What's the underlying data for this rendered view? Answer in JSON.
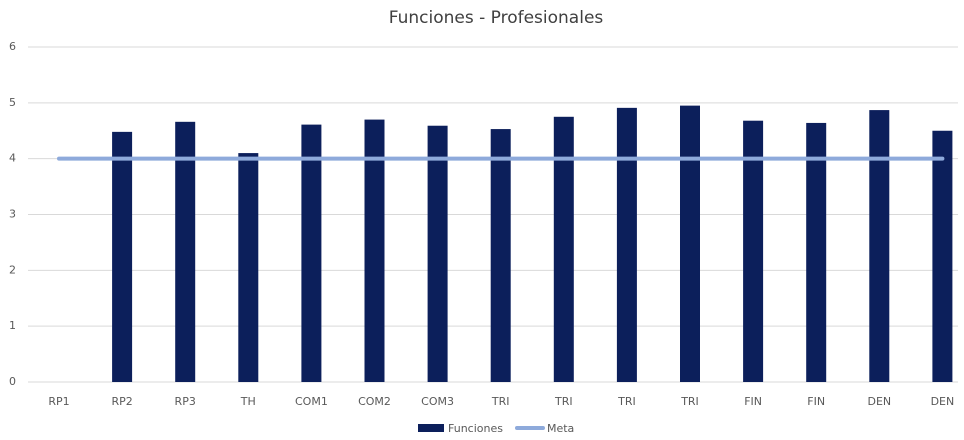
{
  "chart_data": {
    "type": "bar",
    "title": "Funciones - Profesionales",
    "categories": [
      "RP1",
      "RP2",
      "RP3",
      "TH",
      "COM1",
      "COM2",
      "COM3",
      "TRI",
      "TRI",
      "TRI",
      "TRI",
      "FIN",
      "FIN",
      "DEN",
      "DEN"
    ],
    "series": [
      {
        "name": "Funciones",
        "type": "bar",
        "color": "#0c1f5b",
        "values": [
          null,
          4.48,
          4.66,
          4.1,
          4.61,
          4.7,
          4.59,
          4.53,
          4.75,
          4.91,
          4.95,
          4.68,
          4.64,
          4.87,
          4.5
        ]
      },
      {
        "name": "Meta",
        "type": "line",
        "color": "#8eaadb",
        "values": [
          4,
          4,
          4,
          4,
          4,
          4,
          4,
          4,
          4,
          4,
          4,
          4,
          4,
          4,
          4
        ]
      }
    ],
    "ylim": [
      0,
      6
    ],
    "yticks": [
      0,
      1,
      2,
      3,
      4,
      5,
      6
    ],
    "grid": true,
    "legend": "bottom"
  }
}
